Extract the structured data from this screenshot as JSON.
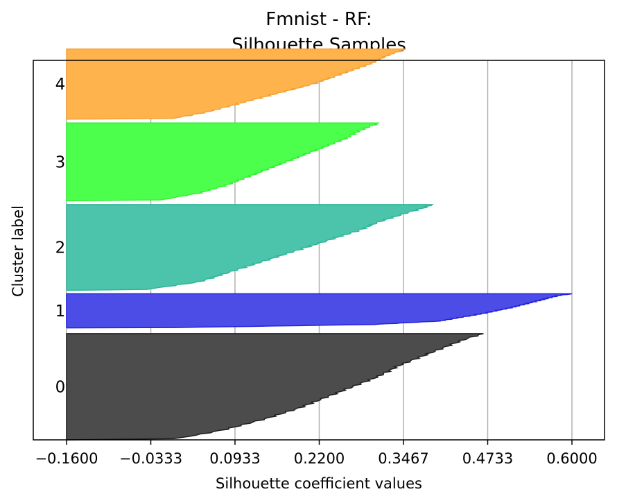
{
  "chart_data": {
    "type": "area",
    "title": "Fmnist - RF:",
    "subtitle": "Silhouette Samples",
    "xlabel": "Silhouette coefficient values",
    "ylabel": "Cluster label",
    "xlim": [
      -0.16,
      0.6
    ],
    "x_ticks": [
      -0.16,
      -0.0333,
      0.0933,
      0.22,
      0.3467,
      0.4733,
      0.6
    ],
    "x_tick_labels": [
      "−0.1600",
      "−0.0333",
      "0.0933",
      "0.2200",
      "0.3467",
      "0.4733",
      "0.6000"
    ],
    "grid": "vertical",
    "clusters": [
      {
        "label": "0",
        "color": "#4c4c4c",
        "stroke": "#1f1f1f",
        "start": 0.0,
        "size": 0.28,
        "profile": [
          [
            0.0,
            -0.16
          ],
          [
            0.01,
            0.0
          ],
          [
            0.05,
            0.04
          ],
          [
            0.1,
            0.08
          ],
          [
            0.2,
            0.14
          ],
          [
            0.3,
            0.19
          ],
          [
            0.4,
            0.23
          ],
          [
            0.5,
            0.27
          ],
          [
            0.6,
            0.31
          ],
          [
            0.7,
            0.34
          ],
          [
            0.8,
            0.38
          ],
          [
            0.9,
            0.42
          ],
          [
            0.95,
            0.44
          ],
          [
            1.0,
            0.467
          ]
        ]
      },
      {
        "label": "1",
        "color": "#4c4ce6",
        "stroke": "#2222dd",
        "start": 0.295,
        "size": 0.09,
        "profile": [
          [
            0.0,
            -0.16
          ],
          [
            0.01,
            0.0
          ],
          [
            0.1,
            0.3
          ],
          [
            0.2,
            0.4
          ],
          [
            0.4,
            0.46
          ],
          [
            0.6,
            0.51
          ],
          [
            0.8,
            0.55
          ],
          [
            0.95,
            0.58
          ],
          [
            1.0,
            0.6
          ]
        ]
      },
      {
        "label": "2",
        "color": "#4cc3ab",
        "stroke": "#2fb597",
        "start": 0.394,
        "size": 0.226,
        "profile": [
          [
            0.0,
            -0.16
          ],
          [
            0.01,
            -0.04
          ],
          [
            0.1,
            0.04
          ],
          [
            0.2,
            0.08
          ],
          [
            0.3,
            0.12
          ],
          [
            0.4,
            0.16
          ],
          [
            0.5,
            0.2
          ],
          [
            0.6,
            0.24
          ],
          [
            0.7,
            0.28
          ],
          [
            0.8,
            0.31
          ],
          [
            0.9,
            0.35
          ],
          [
            0.97,
            0.38
          ],
          [
            1.0,
            0.39
          ]
        ]
      },
      {
        "label": "3",
        "color": "#4cff4c",
        "stroke": "#33f033",
        "start": 0.63,
        "size": 0.205,
        "profile": [
          [
            0.0,
            -0.16
          ],
          [
            0.01,
            -0.02
          ],
          [
            0.1,
            0.04
          ],
          [
            0.2,
            0.08
          ],
          [
            0.3,
            0.11
          ],
          [
            0.4,
            0.14
          ],
          [
            0.5,
            0.17
          ],
          [
            0.6,
            0.2
          ],
          [
            0.7,
            0.23
          ],
          [
            0.8,
            0.26
          ],
          [
            0.9,
            0.28
          ],
          [
            0.97,
            0.3
          ],
          [
            1.0,
            0.31
          ]
        ]
      },
      {
        "label": "4",
        "color": "#ffb34c",
        "stroke": "#f5a033",
        "start": 0.845,
        "size": 0.185,
        "profile": [
          [
            0.0,
            -0.16
          ],
          [
            0.01,
            0.0
          ],
          [
            0.1,
            0.05
          ],
          [
            0.2,
            0.09
          ],
          [
            0.3,
            0.13
          ],
          [
            0.4,
            0.17
          ],
          [
            0.5,
            0.21
          ],
          [
            0.6,
            0.24
          ],
          [
            0.7,
            0.27
          ],
          [
            0.8,
            0.3
          ],
          [
            0.9,
            0.32
          ],
          [
            1.0,
            0.35
          ]
        ]
      }
    ]
  }
}
